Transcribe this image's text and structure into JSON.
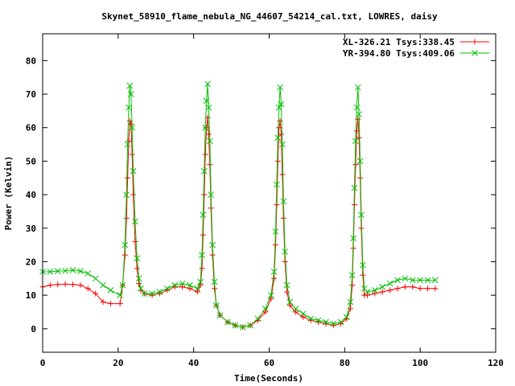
{
  "chart_data": {
    "type": "line",
    "title": "Skynet_58910_flame_nebula_NG_44607_54214_cal.txt, LOWRES, daisy",
    "xlabel": "Time(Seconds)",
    "ylabel": "Power (Kelvin)",
    "xlim": [
      0,
      120
    ],
    "ylim": [
      -7,
      88
    ],
    "xticks": [
      0,
      20,
      40,
      60,
      80,
      100,
      120
    ],
    "yticks": [
      0,
      10,
      20,
      30,
      40,
      50,
      60,
      70,
      80
    ],
    "grid": false,
    "legend_position": "top-right",
    "series": [
      {
        "name": "XL-326.21 Tsys:338.45",
        "color": "#ff0000",
        "marker": "plus",
        "points": [
          [
            0,
            12.5
          ],
          [
            2,
            13
          ],
          [
            4,
            13.2
          ],
          [
            6,
            13.3
          ],
          [
            8,
            13.2
          ],
          [
            10,
            13
          ],
          [
            12,
            12
          ],
          [
            14,
            10.5
          ],
          [
            16,
            8
          ],
          [
            18,
            7.5
          ],
          [
            20.5,
            7.5
          ],
          [
            21.2,
            13
          ],
          [
            21.8,
            22
          ],
          [
            22.2,
            33
          ],
          [
            22.5,
            45
          ],
          [
            22.8,
            56
          ],
          [
            23.1,
            62
          ],
          [
            23.4,
            61
          ],
          [
            23.7,
            52
          ],
          [
            24,
            40
          ],
          [
            24.5,
            26
          ],
          [
            25,
            18
          ],
          [
            25.5,
            13.5
          ],
          [
            26,
            11.5
          ],
          [
            27,
            10.5
          ],
          [
            29,
            10
          ],
          [
            31,
            10.5
          ],
          [
            33,
            11.5
          ],
          [
            35,
            12.5
          ],
          [
            37,
            12.5
          ],
          [
            39,
            12
          ],
          [
            41,
            11
          ],
          [
            41.8,
            13
          ],
          [
            42.2,
            18
          ],
          [
            42.5,
            28
          ],
          [
            42.8,
            40
          ],
          [
            43.1,
            52
          ],
          [
            43.4,
            60
          ],
          [
            43.7,
            63
          ],
          [
            44,
            58
          ],
          [
            44.3,
            49
          ],
          [
            44.6,
            36
          ],
          [
            45,
            22
          ],
          [
            45.5,
            12
          ],
          [
            46,
            7
          ],
          [
            47,
            4
          ],
          [
            49,
            2
          ],
          [
            51,
            1
          ],
          [
            53,
            0.5
          ],
          [
            55,
            1
          ],
          [
            57,
            2.5
          ],
          [
            59,
            5
          ],
          [
            60.5,
            9
          ],
          [
            61.3,
            15
          ],
          [
            61.7,
            25
          ],
          [
            62,
            37
          ],
          [
            62.3,
            50
          ],
          [
            62.6,
            60
          ],
          [
            62.9,
            62
          ],
          [
            63.2,
            58
          ],
          [
            63.5,
            46
          ],
          [
            63.8,
            33
          ],
          [
            64.2,
            20
          ],
          [
            64.7,
            11
          ],
          [
            65.5,
            7
          ],
          [
            67,
            5
          ],
          [
            69,
            3.5
          ],
          [
            71,
            2.5
          ],
          [
            73,
            2
          ],
          [
            75,
            1.5
          ],
          [
            77,
            1
          ],
          [
            79,
            1.5
          ],
          [
            80.5,
            3
          ],
          [
            81.5,
            6
          ],
          [
            82,
            13
          ],
          [
            82.3,
            24
          ],
          [
            82.6,
            37
          ],
          [
            82.9,
            49
          ],
          [
            83.2,
            59
          ],
          [
            83.5,
            62.5
          ],
          [
            83.8,
            57
          ],
          [
            84.1,
            45
          ],
          [
            84.4,
            30
          ],
          [
            84.8,
            16
          ],
          [
            85.2,
            10
          ],
          [
            86,
            10
          ],
          [
            88,
            10.5
          ],
          [
            90,
            11
          ],
          [
            92,
            11.5
          ],
          [
            94,
            12
          ],
          [
            96,
            12.5
          ],
          [
            98,
            12.5
          ],
          [
            100,
            12
          ],
          [
            102,
            12
          ],
          [
            104,
            12
          ]
        ]
      },
      {
        "name": "YR-394.80 Tsys:409.06",
        "color": "#00c000",
        "marker": "cross",
        "points": [
          [
            0,
            17
          ],
          [
            2,
            17
          ],
          [
            4,
            17.2
          ],
          [
            6,
            17.3
          ],
          [
            8,
            17.5
          ],
          [
            10,
            17.2
          ],
          [
            12,
            16.5
          ],
          [
            14,
            15
          ],
          [
            16,
            13
          ],
          [
            18,
            11.5
          ],
          [
            20.5,
            10
          ],
          [
            21.2,
            13
          ],
          [
            21.8,
            25
          ],
          [
            22.2,
            40
          ],
          [
            22.5,
            55
          ],
          [
            22.8,
            66
          ],
          [
            23.1,
            72.5
          ],
          [
            23.4,
            70
          ],
          [
            23.7,
            60
          ],
          [
            24,
            47
          ],
          [
            24.5,
            32
          ],
          [
            25,
            21
          ],
          [
            25.5,
            15
          ],
          [
            26,
            12
          ],
          [
            27,
            10.5
          ],
          [
            29,
            10.5
          ],
          [
            31,
            11
          ],
          [
            33,
            12
          ],
          [
            35,
            13
          ],
          [
            37,
            13.5
          ],
          [
            39,
            13
          ],
          [
            41,
            12
          ],
          [
            41.8,
            14
          ],
          [
            42.2,
            22
          ],
          [
            42.5,
            34
          ],
          [
            42.8,
            47
          ],
          [
            43.1,
            60
          ],
          [
            43.4,
            68
          ],
          [
            43.7,
            73
          ],
          [
            44,
            66
          ],
          [
            44.3,
            56
          ],
          [
            44.6,
            40
          ],
          [
            45,
            25
          ],
          [
            45.5,
            14
          ],
          [
            46,
            7
          ],
          [
            47,
            4
          ],
          [
            49,
            2
          ],
          [
            51,
            1
          ],
          [
            53,
            0.5
          ],
          [
            55,
            1
          ],
          [
            57,
            3
          ],
          [
            59,
            6
          ],
          [
            60.5,
            10
          ],
          [
            61.3,
            17
          ],
          [
            61.7,
            29
          ],
          [
            62,
            43
          ],
          [
            62.3,
            57
          ],
          [
            62.6,
            66
          ],
          [
            62.9,
            72
          ],
          [
            63.2,
            67
          ],
          [
            63.5,
            55
          ],
          [
            63.8,
            38
          ],
          [
            64.2,
            23
          ],
          [
            64.7,
            13
          ],
          [
            65.5,
            8
          ],
          [
            67,
            6
          ],
          [
            69,
            4.5
          ],
          [
            71,
            3
          ],
          [
            73,
            2.5
          ],
          [
            75,
            2
          ],
          [
            77,
            1.5
          ],
          [
            79,
            2
          ],
          [
            80.5,
            3.5
          ],
          [
            81.5,
            8
          ],
          [
            82,
            16
          ],
          [
            82.3,
            27
          ],
          [
            82.6,
            42
          ],
          [
            82.9,
            56
          ],
          [
            83.2,
            66
          ],
          [
            83.5,
            72
          ],
          [
            83.8,
            64
          ],
          [
            84.1,
            50
          ],
          [
            84.4,
            34
          ],
          [
            84.8,
            19
          ],
          [
            85.2,
            12
          ],
          [
            86,
            11
          ],
          [
            88,
            11.5
          ],
          [
            90,
            12.5
          ],
          [
            92,
            13.5
          ],
          [
            94,
            14.5
          ],
          [
            96,
            15
          ],
          [
            98,
            14.5
          ],
          [
            100,
            14.5
          ],
          [
            102,
            14.5
          ],
          [
            104,
            14.5
          ]
        ]
      }
    ]
  }
}
